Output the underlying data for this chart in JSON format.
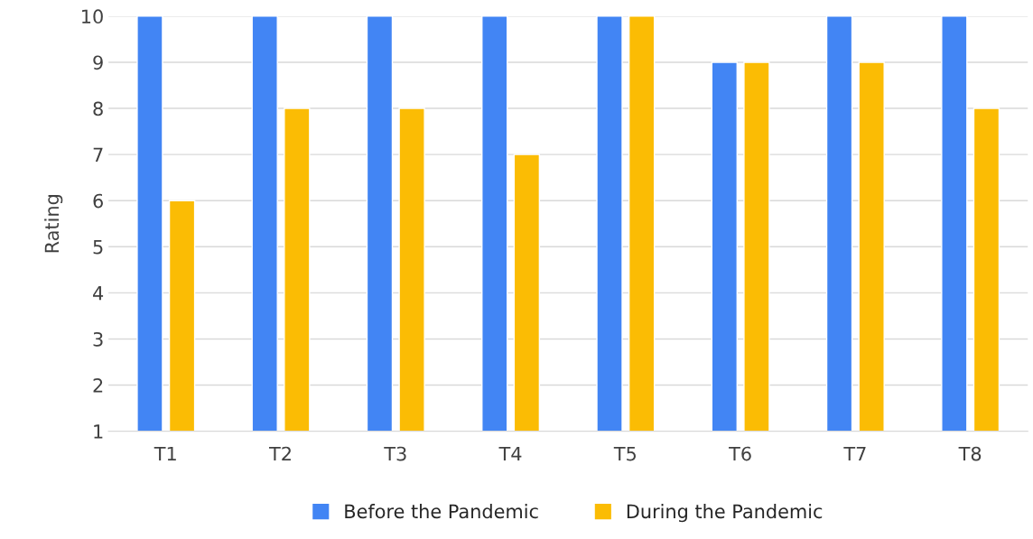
{
  "chart_data": {
    "type": "bar",
    "ylabel": "Rating",
    "categories": [
      "T1",
      "T2",
      "T3",
      "T4",
      "T5",
      "T6",
      "T7",
      "T8"
    ],
    "series": [
      {
        "name": "Before the Pandemic",
        "color": "#4285f4",
        "values": [
          10,
          10,
          10,
          10,
          10,
          9,
          10,
          10
        ]
      },
      {
        "name": "During the Pandemic",
        "color": "#fbbc04",
        "values": [
          6,
          8,
          8,
          7,
          10,
          9,
          9,
          8
        ]
      }
    ],
    "ylim": [
      1,
      10
    ],
    "yticks": [
      1,
      2,
      3,
      4,
      5,
      6,
      7,
      8,
      9,
      10
    ],
    "grid": "y",
    "legend": "bottom"
  }
}
